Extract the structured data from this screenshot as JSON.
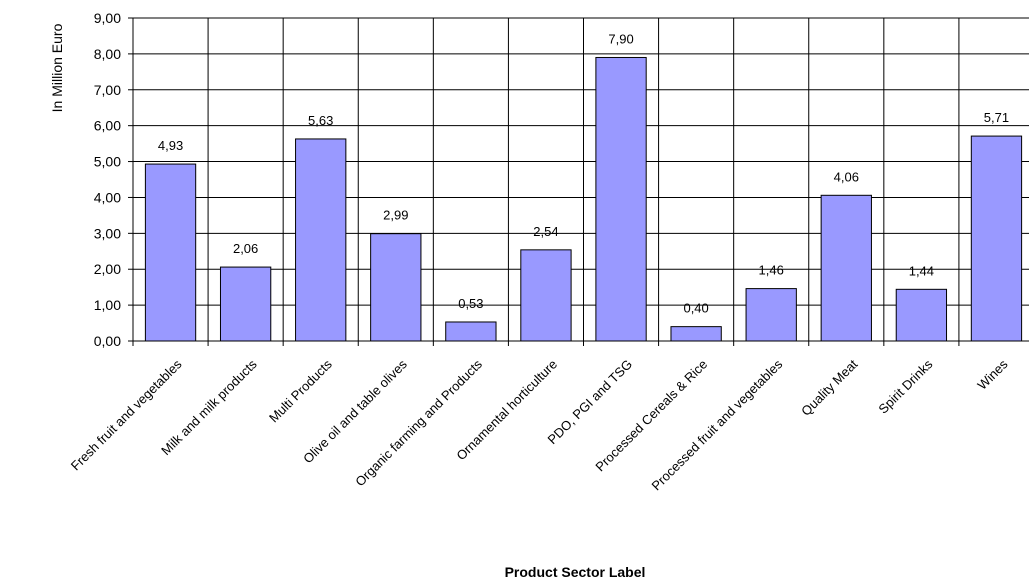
{
  "chart_data": {
    "type": "bar",
    "title": "",
    "xlabel": "Product Sector Label",
    "ylabel": "In Million Euro",
    "ylim": [
      0,
      9
    ],
    "y_ticks": [
      "0,00",
      "1,00",
      "2,00",
      "3,00",
      "4,00",
      "5,00",
      "6,00",
      "7,00",
      "8,00",
      "9,00"
    ],
    "grid": true,
    "legend": "none",
    "bar_color": "#9999FF",
    "categories": [
      "Fresh fruit and vegetables",
      "Milk and milk products",
      "Multi Products",
      "Olive oil and table olives",
      "Organic farming and Products",
      "Ornamental horticulture",
      "PDO, PGI and TSG",
      "Processed Cereals & Rice",
      "Processed fruit and vegetables",
      "Quality Meat",
      "Spirit Drinks",
      "Wines"
    ],
    "values": [
      4.93,
      2.06,
      5.63,
      2.99,
      0.53,
      2.54,
      7.9,
      0.4,
      1.46,
      4.06,
      1.44,
      5.71
    ],
    "value_labels": [
      "4,93",
      "2,06",
      "5,63",
      "2,99",
      "0,53",
      "2,54",
      "7,90",
      "0,40",
      "1,46",
      "4,06",
      "1,44",
      "5,71"
    ]
  }
}
